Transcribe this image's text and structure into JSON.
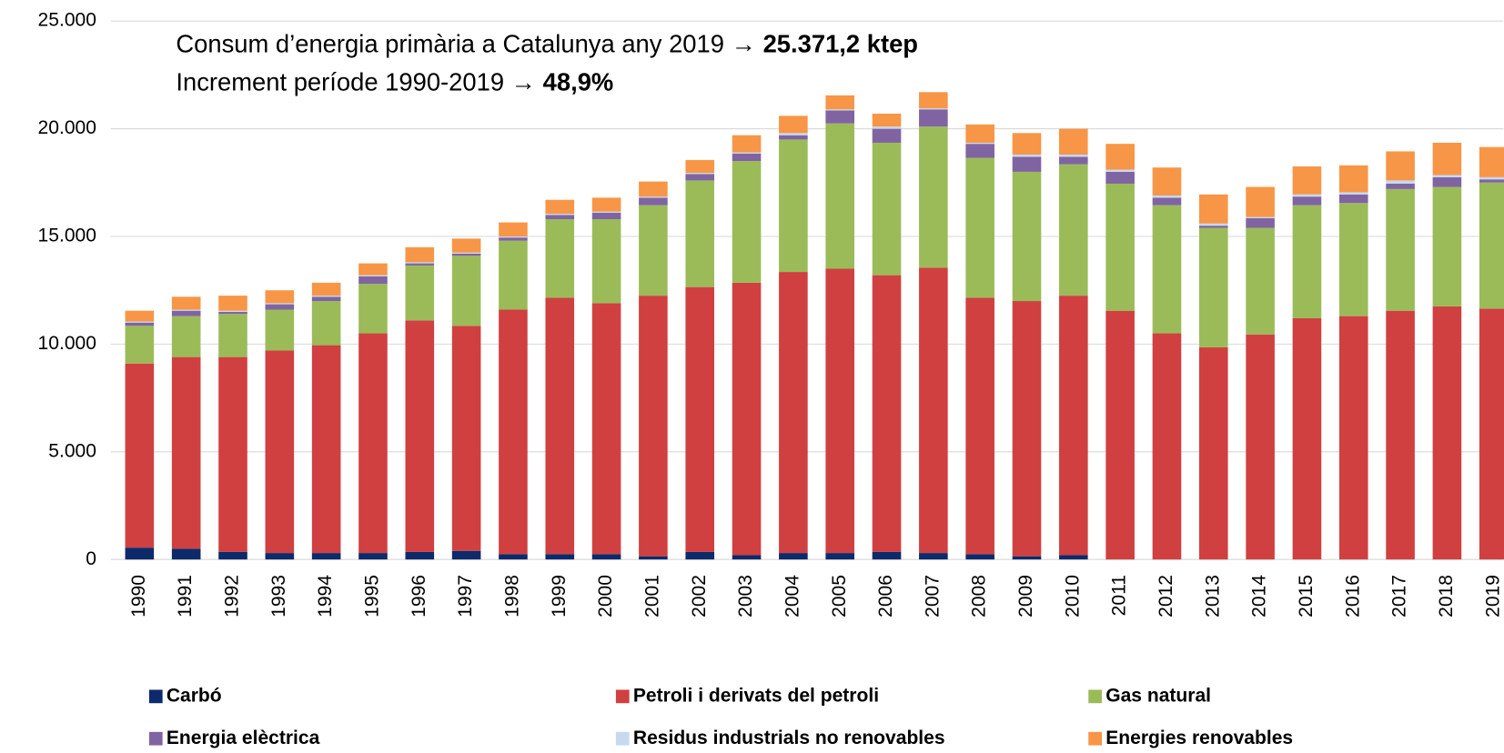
{
  "chart_data": {
    "type": "stacked_bar",
    "title_lines": [
      {
        "text": "Consum d’energia primària a Catalunya any 2019 →",
        "bold": "25.371,2 ktep"
      },
      {
        "text": "Increment període 1990-2019 →",
        "bold": "48,9%"
      }
    ],
    "categories": [
      "1990",
      "1991",
      "1992",
      "1993",
      "1994",
      "1995",
      "1996",
      "1997",
      "1998",
      "1999",
      "2000",
      "2001",
      "2002",
      "2003",
      "2004",
      "2005",
      "2006",
      "2007",
      "2008",
      "2009",
      "2010",
      "2011",
      "2012",
      "2013",
      "2014",
      "2015",
      "2016",
      "2017",
      "2018",
      "2019"
    ],
    "series": [
      {
        "name": "Carbó",
        "color": "#0d2a6b",
        "values": [
          550,
          500,
          350,
          300,
          300,
          300,
          350,
          400,
          250,
          250,
          250,
          150,
          350,
          200,
          300,
          300,
          350,
          300,
          250,
          150,
          200,
          0,
          0,
          0,
          0,
          0,
          0,
          0,
          0,
          0
        ]
      },
      {
        "name": "Petroli i derivats del petroli",
        "color": "#d04040",
        "values": [
          8550,
          8900,
          9050,
          9400,
          9650,
          10200,
          10750,
          10450,
          11350,
          11900,
          11650,
          12100,
          12300,
          12650,
          13050,
          13200,
          12850,
          13250,
          11900,
          11850,
          12050,
          11550,
          10500,
          9850,
          10450,
          11200,
          11300,
          11550,
          11750,
          11650
        ]
      },
      {
        "name": "Gas natural",
        "color": "#9bbb59",
        "values": [
          1750,
          1900,
          2000,
          1900,
          2050,
          2300,
          2550,
          3250,
          3200,
          3650,
          3900,
          4200,
          4950,
          5650,
          6150,
          6750,
          6150,
          6550,
          6500,
          6000,
          6100,
          5900,
          5950,
          5550,
          4950,
          5250,
          5250,
          5650,
          5550,
          5850
        ]
      },
      {
        "name": "Energia elèctrica",
        "color": "#8064a2",
        "values": [
          150,
          250,
          100,
          250,
          200,
          350,
          100,
          100,
          150,
          200,
          300,
          350,
          300,
          350,
          200,
          600,
          650,
          800,
          650,
          700,
          350,
          550,
          350,
          100,
          450,
          400,
          400,
          250,
          450,
          150
        ]
      },
      {
        "name": "Residus industrials no renovables",
        "color": "#c6d9f1",
        "values": [
          50,
          50,
          50,
          50,
          50,
          50,
          50,
          50,
          50,
          50,
          50,
          50,
          50,
          50,
          100,
          50,
          100,
          50,
          50,
          100,
          100,
          100,
          100,
          100,
          50,
          100,
          100,
          150,
          100,
          100
        ]
      },
      {
        "name": "Energies renovables",
        "color": "#f79646",
        "values": [
          500,
          600,
          700,
          600,
          600,
          550,
          700,
          650,
          650,
          650,
          650,
          700,
          600,
          800,
          800,
          650,
          600,
          750,
          850,
          1000,
          1200,
          1200,
          1300,
          1350,
          1400,
          1300,
          1250,
          1350,
          1500,
          1400
        ]
      }
    ],
    "ylim": [
      0,
      25000
    ],
    "yticks": [
      0,
      {
        "value": 5000,
        "label": "5.000"
      },
      {
        "value": 10000,
        "label": "10.000"
      },
      {
        "value": 15000,
        "label": "15.000"
      },
      {
        "value": 20000,
        "label": "20.000"
      },
      {
        "value": 25000,
        "label": "25.000"
      }
    ],
    "grid": true,
    "legend": "bottom"
  }
}
